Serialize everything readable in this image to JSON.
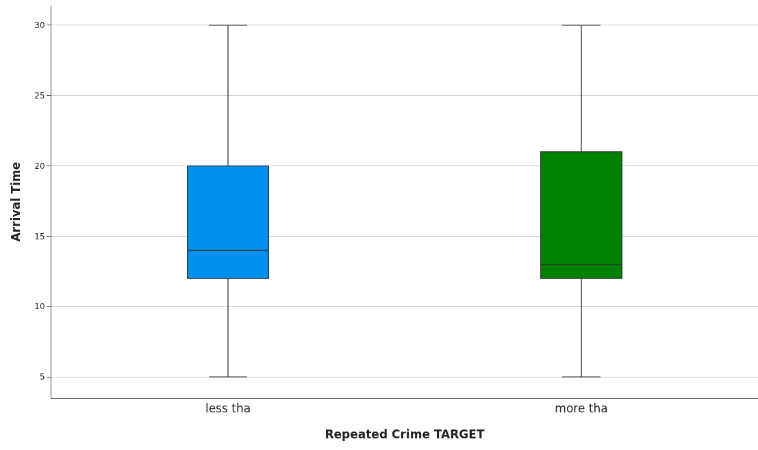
{
  "chart_data": {
    "type": "box",
    "xlabel": "Repeated Crime TARGET",
    "ylabel": "Arrival Time",
    "categories": [
      "less tha",
      "more tha"
    ],
    "colors": [
      "#0091ef",
      "#008100"
    ],
    "boxes": [
      {
        "low": 5,
        "q1": 12,
        "median": 14,
        "q3": 20,
        "high": 30
      },
      {
        "low": 5,
        "q1": 12,
        "median": 13,
        "q3": 21,
        "high": 30
      }
    ],
    "ylim": [
      3.5,
      31.4
    ],
    "yticks": [
      5,
      10,
      15,
      20,
      25,
      30
    ],
    "grid": "y",
    "legend": false
  }
}
